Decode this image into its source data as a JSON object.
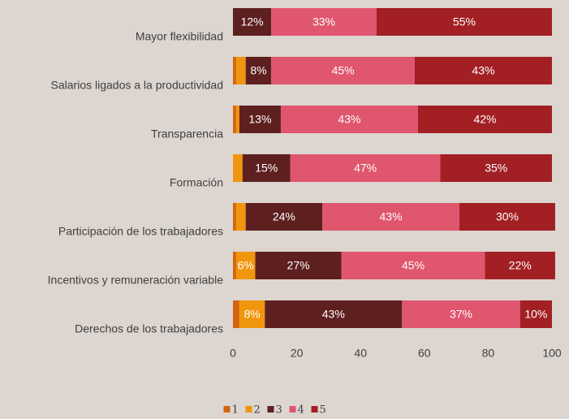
{
  "chart_data": {
    "type": "stacked_bar_horizontal",
    "categories": [
      "Mayor flexibilidad",
      "Salarios ligados a la productividad",
      "Transparencia",
      "Formación",
      "Participación de los trabajadores",
      "Incentivos y remuneración variable",
      "Derechos de los trabajadores"
    ],
    "series": [
      {
        "name": "1",
        "color": "#d4650f",
        "values": [
          0,
          1,
          1,
          0,
          1,
          1,
          2
        ]
      },
      {
        "name": "2",
        "color": "#f0960e",
        "values": [
          0,
          3,
          1,
          3,
          3,
          6,
          8
        ],
        "value_labels": [
          null,
          null,
          null,
          null,
          null,
          "6%",
          "8%"
        ]
      },
      {
        "name": "3",
        "color": "#5e1f1f",
        "values": [
          12,
          8,
          13,
          15,
          24,
          27,
          43
        ],
        "value_labels": [
          "12%",
          "8%",
          "13%",
          "15%",
          "24%",
          "27%",
          "43%"
        ]
      },
      {
        "name": "4",
        "color": "#e0566e",
        "values": [
          33,
          45,
          43,
          47,
          43,
          45,
          37
        ],
        "value_labels": [
          "33%",
          "45%",
          "43%",
          "47%",
          "43%",
          "45%",
          "37%"
        ]
      },
      {
        "name": "5",
        "color": "#a21f24",
        "values": [
          55,
          43,
          42,
          35,
          30,
          22,
          10
        ],
        "value_labels": [
          "55%",
          "43%",
          "42%",
          "35%",
          "30%",
          "22%",
          "10%"
        ]
      }
    ],
    "xlim": [
      0,
      100
    ],
    "xticks": [
      0,
      20,
      40,
      60,
      80,
      100
    ],
    "grid": false,
    "legend": "bottom"
  }
}
